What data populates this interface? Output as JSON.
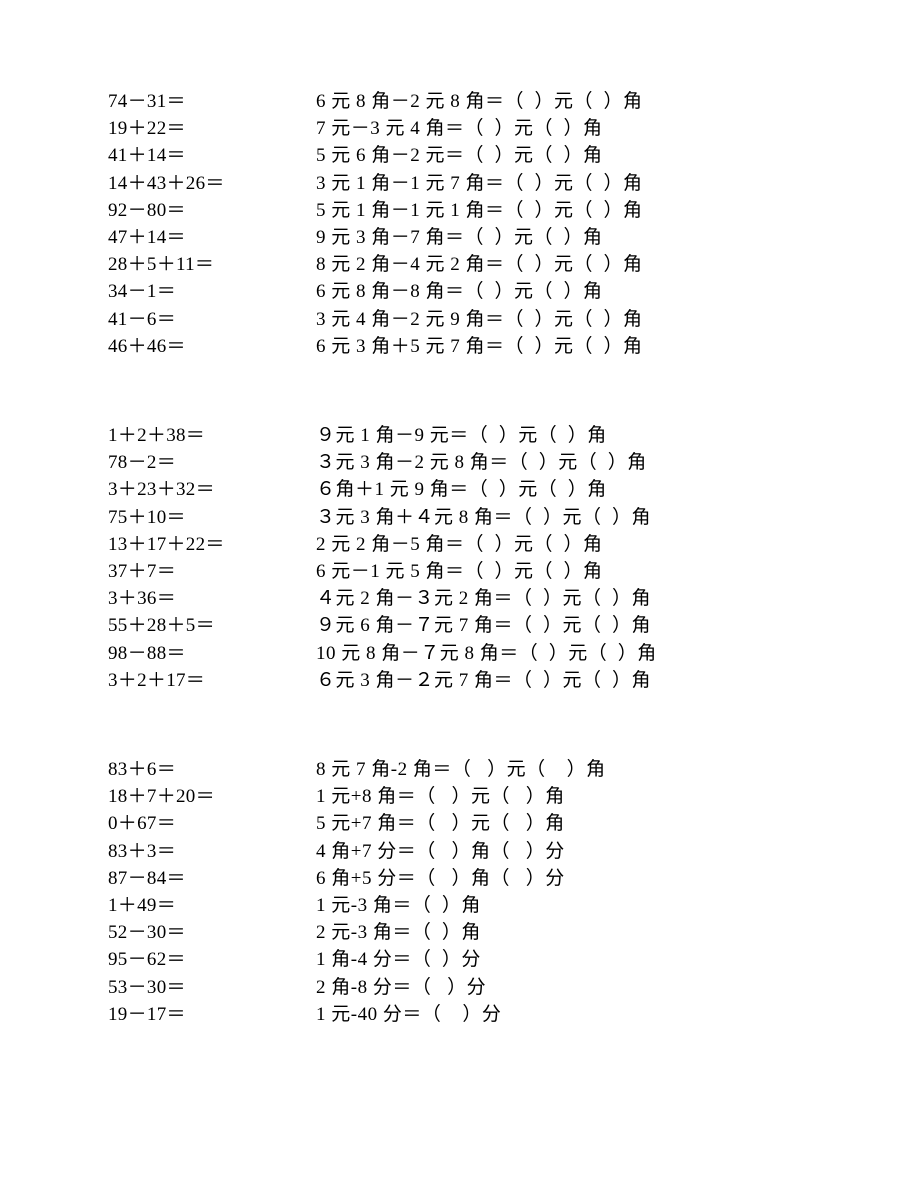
{
  "blocks": [
    {
      "rows": [
        {
          "left": "74－31＝",
          "right": "6 元 8 角－2 元 8 角＝（  ）元（  ）角"
        },
        {
          "left": "19＋22＝",
          "right": "7 元－3 元 4 角＝（  ）元（  ）角"
        },
        {
          "left": "41＋14＝",
          "right": "5 元 6 角－2 元＝（  ）元（  ）角"
        },
        {
          "left": "14＋43＋26＝",
          "right": "3 元 1 角－1 元 7 角＝（  ）元（  ）角"
        },
        {
          "left": "92－80＝",
          "right": "5 元 1 角－1 元 1 角＝（  ）元（  ）角"
        },
        {
          "left": "47＋14＝",
          "right": "9 元 3 角－7 角＝（  ）元（  ）角"
        },
        {
          "left": "28＋5＋11＝",
          "right": "8 元 2 角－4 元 2 角＝（  ）元（  ）角"
        },
        {
          "left": "34－1＝",
          "right": "6 元 8 角－8 角＝（  ）元（  ）角"
        },
        {
          "left": "41－6＝",
          "right": "3 元 4 角－2 元 9 角＝（  ）元（  ）角"
        },
        {
          "left": "46＋46＝",
          "right": "6 元 3 角＋5 元 7 角＝（  ）元（  ）角"
        }
      ]
    },
    {
      "rows": [
        {
          "left": "1＋2＋38＝",
          "right": "９元 1 角－9 元＝（  ）元（  ）角"
        },
        {
          "left": "78－2＝",
          "right": "３元 3 角－2 元 8 角＝（  ）元（  ）角"
        },
        {
          "left": "3＋23＋32＝",
          "right": "６角＋1 元 9 角＝（  ）元（  ）角"
        },
        {
          "left": "75＋10＝",
          "right": "３元 3 角＋４元 8 角＝（  ）元（  ）角"
        },
        {
          "left": "13＋17＋22＝",
          "right": "2 元 2 角－5 角＝（  ）元（  ）角"
        },
        {
          "left": "37＋7＝",
          "right": "6 元－1 元 5 角＝（  ）元（  ）角"
        },
        {
          "left": "3＋36＝",
          "right": "４元 2 角－３元 2 角＝（  ）元（  ）角"
        },
        {
          "left": "55＋28＋5＝",
          "right": "９元 6 角－７元 7 角＝（  ）元（  ）角"
        },
        {
          "left": "98－88＝",
          "right": "10 元 8 角－７元 8 角＝（  ）元（  ）角"
        },
        {
          "left": "3＋2＋17＝",
          "right": "６元 3 角－２元 7 角＝（  ）元（  ）角"
        }
      ]
    },
    {
      "rows": [
        {
          "left": "83＋6＝",
          "right": "8 元 7 角-2 角＝（   ）元（    ）角"
        },
        {
          "left": "18＋7＋20＝",
          "right": "1 元+8 角＝（   ）元（   ）角"
        },
        {
          "left": "0＋67＝",
          "right": "5 元+7 角＝（   ）元（   ）角"
        },
        {
          "left": "83＋3＝",
          "right": "4 角+7 分＝（   ）角（   ）分"
        },
        {
          "left": "87－84＝",
          "right": "6 角+5 分＝（   ）角（   ）分"
        },
        {
          "left": "1＋49＝",
          "right": "1 元-3 角＝（  ）角"
        },
        {
          "left": "52－30＝",
          "right": "2 元-3 角＝（  ）角"
        },
        {
          "left": "95－62＝",
          "right": "1 角-4 分＝（  ）分"
        },
        {
          "left": "53－30＝",
          "right": "2 角-8 分＝（   ）分"
        },
        {
          "left": "19－17＝",
          "right": "1 元-40 分＝（    ）分"
        }
      ]
    }
  ]
}
